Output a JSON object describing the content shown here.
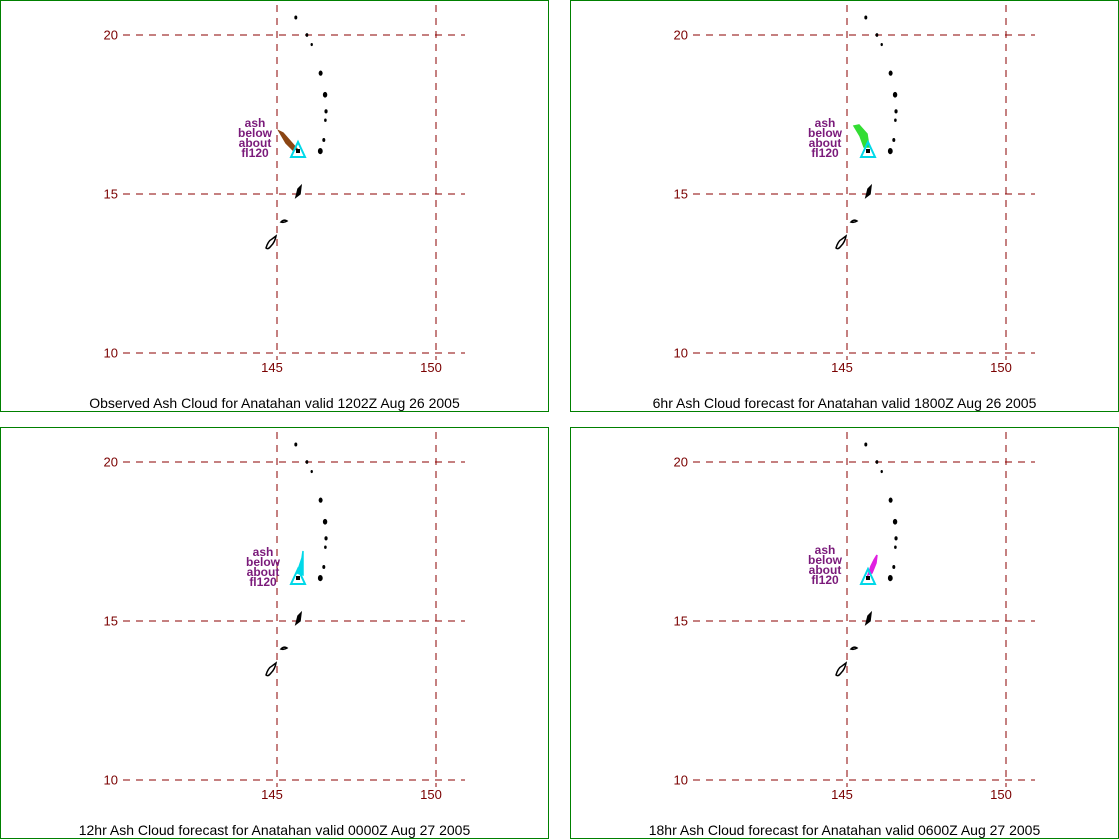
{
  "colors": {
    "frame": "#008000",
    "gridline": "#8b0000",
    "tick_label": "#7a0000",
    "island": "#000000",
    "volcano_marker": "#00d8e8",
    "ash_text": "#7a1a7a",
    "caption": "#000000"
  },
  "map": {
    "lon_ticks": [
      145,
      150
    ],
    "lat_ticks": [
      10,
      15,
      20
    ],
    "volcano": {
      "name": "Anatahan",
      "lon": 145.67,
      "lat": 16.35
    }
  },
  "panels": [
    {
      "caption": "Observed Ash Cloud for Anatahan valid 1202Z Aug 26 2005",
      "ash_label": [
        "ash",
        "below",
        "about",
        "fl120"
      ],
      "ash_color": "#8b4513"
    },
    {
      "caption": "6hr Ash Cloud forecast for Anatahan valid 1800Z Aug 26 2005",
      "ash_label": [
        "ash",
        "below",
        "about",
        "fl120"
      ],
      "ash_color": "#33dd33"
    },
    {
      "caption": "12hr Ash Cloud forecast for Anatahan valid 0000Z Aug 27 2005",
      "ash_label": [
        "ash",
        "below",
        "about",
        "fl120"
      ],
      "ash_color": "#00d8e8"
    },
    {
      "caption": "18hr Ash Cloud forecast for Anatahan valid 0600Z Aug 27 2005",
      "ash_label": [
        "ash",
        "below",
        "about",
        "fl120"
      ],
      "ash_color": "#e020e0"
    }
  ]
}
